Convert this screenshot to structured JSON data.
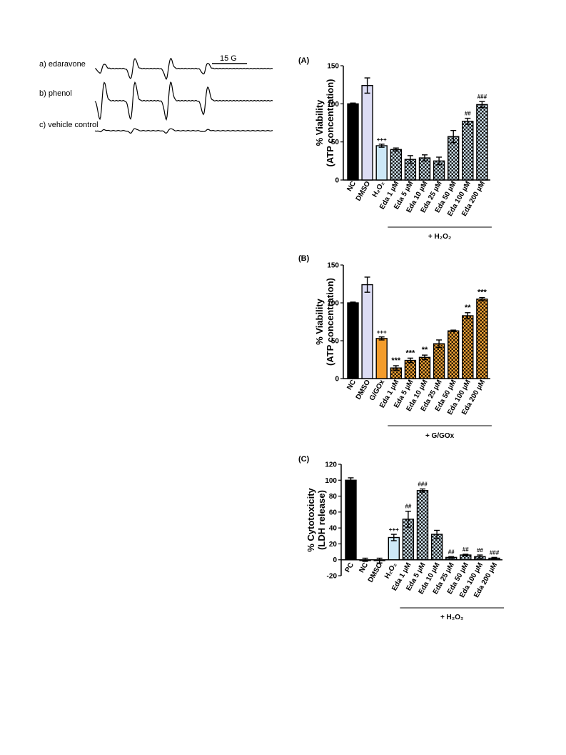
{
  "esr": {
    "scale_label": "15 G",
    "traces": [
      {
        "label": "a) edaravone",
        "amp": [
          0.25,
          0.55,
          0.55,
          0.3
        ]
      },
      {
        "label": "b) phenol",
        "amp": [
          1.0,
          1.0,
          1.0,
          0.75
        ]
      },
      {
        "label": "c) vehicle control",
        "amp": [
          0.05,
          0.12,
          0.12,
          0.06
        ]
      }
    ]
  },
  "chart_data": [
    {
      "type": "bar",
      "panel": "(A)",
      "ylabel": [
        "% Viability",
        "(ATP concentration)"
      ],
      "ylim": [
        0,
        150
      ],
      "yticks": [
        0,
        50,
        100,
        150
      ],
      "categories": [
        "NC",
        "DMSO",
        "H₂O₂",
        "Eda 1 µM",
        "Eda 5 µM",
        "Eda 10 µM",
        "Eda 25 µM",
        "Eda 50 µM",
        "Eda 100 µM",
        "Eda 200 µM"
      ],
      "values": [
        100,
        124,
        45,
        40,
        27,
        29,
        25,
        57,
        77,
        99
      ],
      "errors": [
        1,
        10,
        2,
        2,
        5,
        4,
        5,
        8,
        4,
        4
      ],
      "annotations": [
        "",
        "",
        "+++",
        "",
        "",
        "",
        "",
        "",
        "##",
        "###"
      ],
      "styles": [
        "black",
        "lavender",
        "lightblue",
        "check",
        "check",
        "check",
        "check",
        "check",
        "check",
        "check"
      ],
      "group_label": "+ H₂O₂",
      "group_from": 3
    },
    {
      "type": "bar",
      "panel": "(B)",
      "ylabel": [
        "% Viability",
        "(ATP concentration)"
      ],
      "ylim": [
        0,
        150
      ],
      "yticks": [
        0,
        50,
        100,
        150
      ],
      "categories": [
        "NC",
        "DMSO",
        "G/GOx",
        "Eda 1 µM",
        "Eda 5 µM",
        "Eda 10 µM",
        "Eda 25 µM",
        "Eda 50 µM",
        "Eda 100 µM",
        "Eda 200 µM"
      ],
      "values": [
        100,
        124,
        53,
        14,
        24,
        28,
        46,
        63,
        83,
        105
      ],
      "errors": [
        1,
        10,
        2,
        3,
        3,
        3,
        5,
        1,
        4,
        2
      ],
      "annotations": [
        "",
        "",
        "+++",
        "***",
        "***",
        "**",
        "",
        "",
        "**",
        "***"
      ],
      "styles": [
        "black",
        "lavender",
        "orange",
        "ocheck",
        "ocheck",
        "ocheck",
        "ocheck",
        "ocheck",
        "ocheck",
        "ocheck"
      ],
      "group_label": "+ G/GOx",
      "group_from": 3
    },
    {
      "type": "bar",
      "panel": "(C)",
      "ylabel": [
        "% Cytotoxicity",
        "(LDH release)"
      ],
      "ylim": [
        -20,
        120
      ],
      "yticks": [
        -20,
        0,
        20,
        40,
        60,
        80,
        100,
        120
      ],
      "categories": [
        "PC",
        "NC",
        "DMSO",
        "H₂O₂",
        "Eda 1 µM",
        "Eda 5 µM",
        "Eda 10 µM",
        "Eda 25 µM",
        "Eda 50 µM",
        "Eda 100 µM",
        "Eda 200 µM"
      ],
      "values": [
        100,
        0,
        -1,
        28,
        51,
        87,
        32,
        3,
        6,
        4,
        2
      ],
      "errors": [
        3,
        2,
        3,
        4,
        10,
        2,
        5,
        1,
        1,
        2,
        1
      ],
      "annotations": [
        "",
        "",
        "",
        "+++",
        "##",
        "###",
        "",
        "##",
        "##",
        "##",
        "###"
      ],
      "styles": [
        "black",
        "white",
        "white",
        "lightblue",
        "check",
        "check",
        "check",
        "check",
        "check",
        "check",
        "check"
      ],
      "group_label": "+ H₂O₂",
      "group_from": 4
    }
  ]
}
